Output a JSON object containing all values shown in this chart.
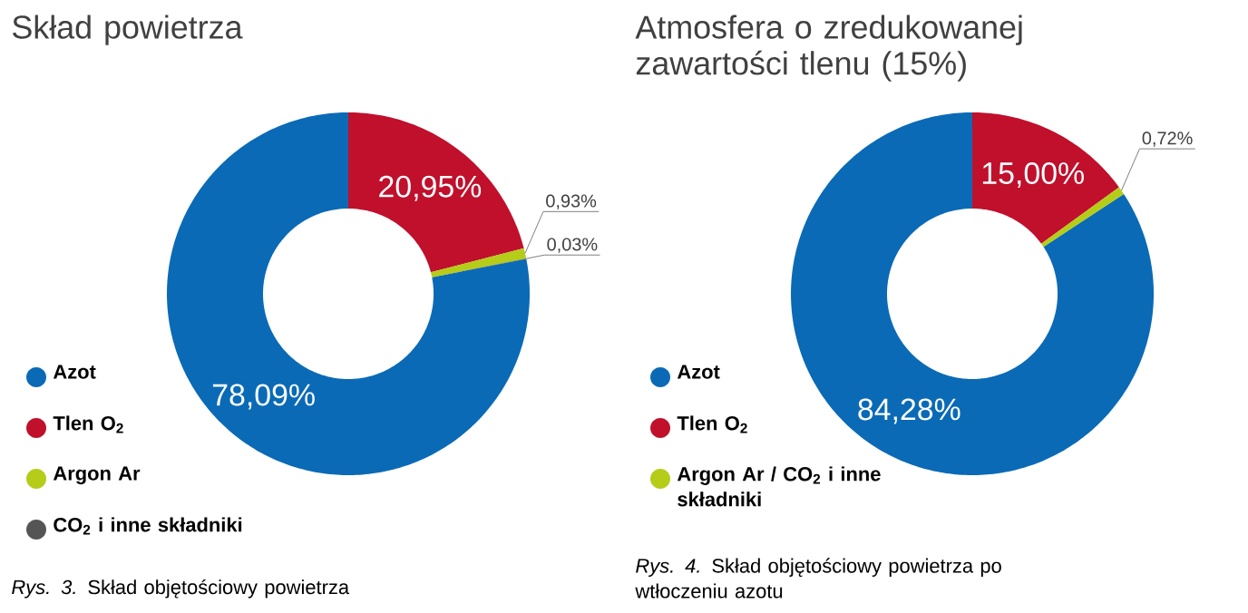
{
  "chart_data": [
    {
      "type": "donut",
      "title": "Skład powietrza",
      "categories": [
        "Azot",
        "Tlen O$_{2}$",
        "Argon Ar",
        "CO$_{2}$ i inne składniki"
      ],
      "values": [
        78.09,
        20.95,
        0.93,
        0.03
      ],
      "colors": [
        "#0a6ab6",
        "#c0102c",
        "#b5cc18",
        "#555555"
      ],
      "value_labels": [
        "78,09%",
        "20,95%",
        "0,93%",
        "0,03%"
      ],
      "legend": "bottom left",
      "annotations": [
        "*Rys. 3.* Skład objętościowy powietrza"
      ]
    },
    {
      "type": "donut",
      "title": "Atmosfera o zredukowanej zawartości tlenu (15%)",
      "categories": [
        "Azot",
        "Tlen O$_{2}$",
        "Argon Ar / CO$_{2}$ i inne składniki"
      ],
      "values": [
        84.28,
        15.0,
        0.72
      ],
      "colors": [
        "#0a6ab6",
        "#c0102c",
        "#b5cc18"
      ],
      "value_labels": [
        "84,28%",
        "15,00%",
        "0,72%"
      ],
      "legend": "bottom left",
      "annotations": [
        "*Rys. 4.* Skład objętościowy powietrza po wtłoczeniu azotu"
      ]
    }
  ]
}
